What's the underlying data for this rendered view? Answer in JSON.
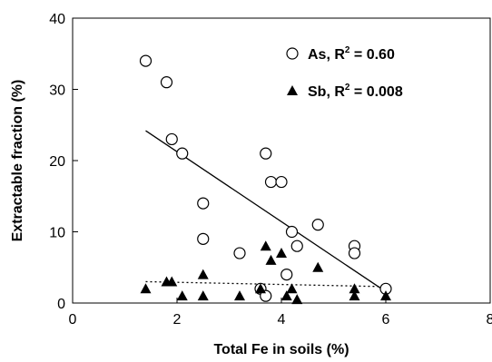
{
  "chart_data": {
    "type": "scatter",
    "xlabel": "Total Fe in soils (%)",
    "ylabel": "Extractable fraction (%)",
    "xlim": [
      0,
      8
    ],
    "ylim": [
      0,
      40
    ],
    "x_ticks": [
      "0",
      "2",
      "4",
      "6",
      "8"
    ],
    "y_ticks": [
      "0",
      "10",
      "20",
      "30",
      "40"
    ],
    "legend_position": "top-right",
    "series": [
      {
        "name": "As, R",
        "r2_label": " = 0.60",
        "marker": "open-circle",
        "color": "#000000",
        "points": [
          [
            1.4,
            34
          ],
          [
            1.8,
            31
          ],
          [
            1.9,
            23
          ],
          [
            2.1,
            21
          ],
          [
            2.5,
            14
          ],
          [
            2.5,
            9
          ],
          [
            3.2,
            7
          ],
          [
            3.6,
            2
          ],
          [
            3.7,
            21
          ],
          [
            3.7,
            1
          ],
          [
            3.8,
            17
          ],
          [
            4.0,
            17
          ],
          [
            4.1,
            4
          ],
          [
            4.2,
            10
          ],
          [
            4.3,
            8
          ],
          [
            4.7,
            11
          ],
          [
            5.4,
            8
          ],
          [
            5.4,
            7
          ],
          [
            6.0,
            2
          ]
        ],
        "trendline": {
          "style": "solid",
          "x": [
            1.4,
            6.0
          ],
          "y": [
            24.2,
            1.6
          ]
        }
      },
      {
        "name": "Sb, R",
        "r2_label": " = 0.008",
        "marker": "filled-triangle",
        "color": "#000000",
        "points": [
          [
            1.4,
            2
          ],
          [
            1.8,
            3
          ],
          [
            1.9,
            3
          ],
          [
            2.1,
            1
          ],
          [
            2.5,
            4
          ],
          [
            2.5,
            1
          ],
          [
            3.2,
            1
          ],
          [
            3.6,
            2
          ],
          [
            3.7,
            8
          ],
          [
            3.8,
            6
          ],
          [
            4.0,
            7
          ],
          [
            4.1,
            1
          ],
          [
            4.2,
            2
          ],
          [
            4.3,
            0.5
          ],
          [
            4.7,
            5
          ],
          [
            5.4,
            2
          ],
          [
            5.4,
            1
          ],
          [
            6.0,
            1
          ]
        ],
        "trendline": {
          "style": "dotted",
          "x": [
            1.4,
            6.0
          ],
          "y": [
            3.0,
            2.3
          ]
        }
      }
    ]
  }
}
